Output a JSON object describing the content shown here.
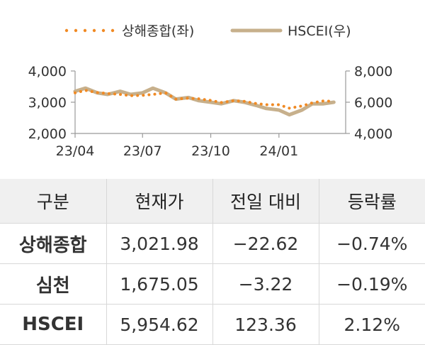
{
  "chart_data": {
    "type": "line",
    "x_ticks": [
      "23/04",
      "23/07",
      "23/10",
      "24/01"
    ],
    "y_left": {
      "ticks": [
        "2,000",
        "3,000",
        "4,000"
      ],
      "range": [
        2000,
        4000
      ]
    },
    "y_right": {
      "ticks": [
        "4,000",
        "6,000",
        "8,000"
      ],
      "range": [
        4000,
        8000
      ]
    },
    "x": [
      "2023-04-01",
      "2023-04-15",
      "2023-05-01",
      "2023-05-15",
      "2023-06-01",
      "2023-06-15",
      "2023-07-01",
      "2023-07-15",
      "2023-08-01",
      "2023-08-15",
      "2023-09-01",
      "2023-09-15",
      "2023-10-01",
      "2023-10-15",
      "2023-11-01",
      "2023-11-15",
      "2023-12-01",
      "2023-12-15",
      "2024-01-01",
      "2024-01-15",
      "2024-02-01",
      "2024-02-15",
      "2024-03-01",
      "2024-03-15"
    ],
    "series": [
      {
        "name": "상해종합(좌)",
        "axis": "left",
        "color": "#f08a24",
        "style": "dotted",
        "values": [
          3300,
          3380,
          3310,
          3280,
          3250,
          3210,
          3220,
          3250,
          3300,
          3100,
          3130,
          3110,
          3060,
          2990,
          3050,
          3030,
          2960,
          2920,
          2920,
          2810,
          2880,
          2980,
          3040,
          3030
        ]
      },
      {
        "name": "HSCEI(우)",
        "axis": "right",
        "color": "#c7b08c",
        "style": "solid",
        "values": [
          6700,
          6900,
          6600,
          6500,
          6700,
          6500,
          6600,
          6900,
          6600,
          6200,
          6300,
          6100,
          6000,
          5900,
          6100,
          6000,
          5800,
          5600,
          5500,
          5200,
          5500,
          5900,
          5900,
          6000
        ]
      }
    ]
  },
  "legend": {
    "items": [
      "상해종합(좌)",
      "HSCEI(우)"
    ]
  },
  "table": {
    "headers": [
      "구분",
      "현재가",
      "전일 대비",
      "등락률"
    ],
    "rows": [
      {
        "name": "상해종합",
        "price": "3,021.98",
        "change": "−22.62",
        "pct": "−0.74%"
      },
      {
        "name": "심천",
        "price": "1,675.05",
        "change": "−3.22",
        "pct": "−0.19%"
      },
      {
        "name": "HSCEI",
        "price": "5,954.62",
        "change": "123.36",
        "pct": "2.12%"
      }
    ]
  }
}
